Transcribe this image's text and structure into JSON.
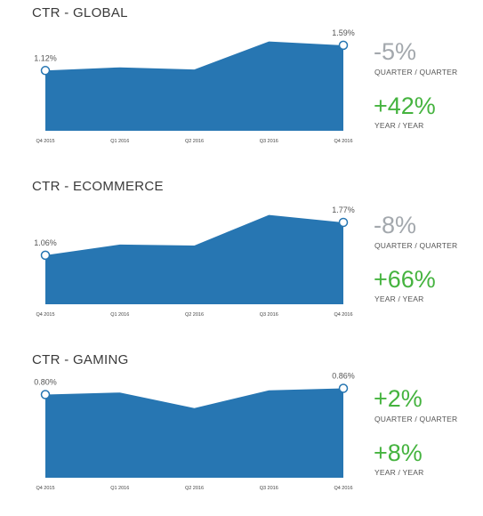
{
  "panels": [
    {
      "title": "CTR - GLOBAL",
      "stats": [
        {
          "value": "-5%",
          "label": "QUARTER / QUARTER",
          "color": "#a3a8ad"
        },
        {
          "value": "+42%",
          "label": "YEAR / YEAR",
          "color": "#45b33f"
        }
      ]
    },
    {
      "title": "CTR - ECOMMERCE",
      "stats": [
        {
          "value": "-8%",
          "label": "QUARTER / QUARTER",
          "color": "#a3a8ad"
        },
        {
          "value": "+66%",
          "label": "YEAR / YEAR",
          "color": "#45b33f"
        }
      ]
    },
    {
      "title": "CTR - GAMING",
      "stats": [
        {
          "value": "+2%",
          "label": "QUARTER / QUARTER",
          "color": "#45b33f"
        },
        {
          "value": "+8%",
          "label": "YEAR / YEAR",
          "color": "#45b33f"
        }
      ]
    }
  ],
  "chart_data": [
    {
      "type": "area",
      "title": "CTR - GLOBAL",
      "categories": [
        "Q4 2015",
        "Q1 2016",
        "Q2 2016",
        "Q3 2016",
        "Q4 2016"
      ],
      "values": [
        1.12,
        1.18,
        1.14,
        1.66,
        1.59
      ],
      "start_label": "1.12%",
      "end_label": "1.59%",
      "ylim": [
        0,
        1.72
      ],
      "color": "#2776b2"
    },
    {
      "type": "area",
      "title": "CTR - ECOMMERCE",
      "categories": [
        "Q4 2015",
        "Q1 2016",
        "Q2 2016",
        "Q3 2016",
        "Q4 2016"
      ],
      "values": [
        1.06,
        1.29,
        1.27,
        1.93,
        1.77
      ],
      "start_label": "1.06%",
      "end_label": "1.77%",
      "ylim": [
        0,
        2.0
      ],
      "color": "#2776b2"
    },
    {
      "type": "area",
      "title": "CTR - GAMING",
      "categories": [
        "Q4 2015",
        "Q1 2016",
        "Q2 2016",
        "Q3 2016",
        "Q4 2016"
      ],
      "values": [
        0.8,
        0.82,
        0.67,
        0.84,
        0.86
      ],
      "start_label": "0.80%",
      "end_label": "0.86%",
      "ylim": [
        0,
        0.89
      ],
      "color": "#2776b2"
    }
  ]
}
